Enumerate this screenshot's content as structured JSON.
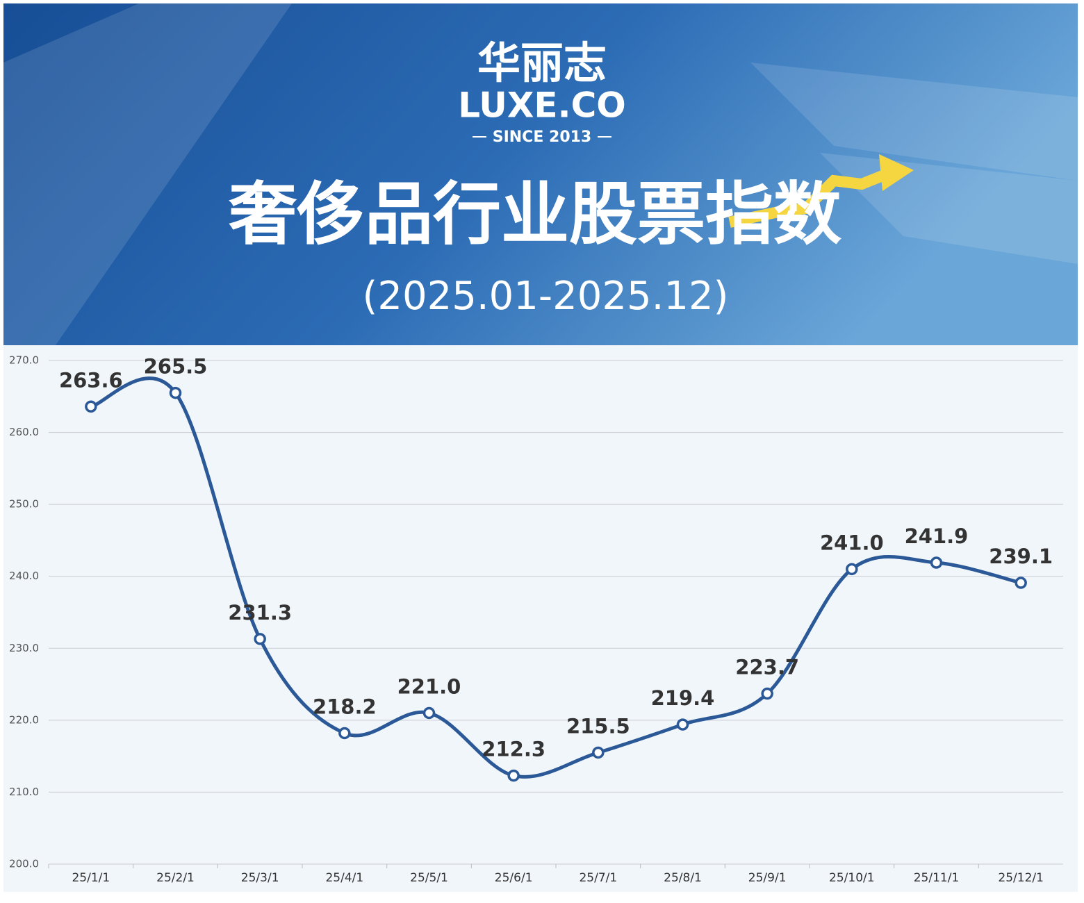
{
  "header": {
    "brand_cn": "华丽志",
    "brand_en": "LUXE.CO",
    "since": "SINCE 2013"
  },
  "chart_data": {
    "type": "line",
    "title": "奢侈品行业股票指数",
    "subtitle": "(2025.01-2025.12)",
    "categories": [
      "25/1/1",
      "25/2/1",
      "25/3/1",
      "25/4/1",
      "25/5/1",
      "25/6/1",
      "25/7/1",
      "25/8/1",
      "25/9/1",
      "25/10/1",
      "25/11/1",
      "25/12/1"
    ],
    "series": [
      {
        "name": "奢侈品行业股票指数",
        "color": "#2b5896",
        "values": [
          263.6,
          265.5,
          231.3,
          218.2,
          221.0,
          212.3,
          215.5,
          219.4,
          223.7,
          241.0,
          241.9,
          239.1
        ],
        "value_labels": [
          "263.6",
          "265.5",
          "231.3",
          "218.2",
          "221.0",
          "212.3",
          "215.5",
          "219.4",
          "223.7",
          "241.0",
          "241.9",
          "239.1"
        ]
      }
    ],
    "ylim": [
      200,
      270
    ],
    "yticks": [
      {
        "value": 200,
        "label": "200.0"
      },
      {
        "value": 210,
        "label": "210.0"
      },
      {
        "value": 220,
        "label": "220.0"
      },
      {
        "value": 230,
        "label": "230.0"
      },
      {
        "value": 240,
        "label": "240.0"
      },
      {
        "value": 250,
        "label": "250.0"
      },
      {
        "value": 260,
        "label": "260.0"
      },
      {
        "value": 270,
        "label": "270.0"
      }
    ],
    "grid": true
  }
}
